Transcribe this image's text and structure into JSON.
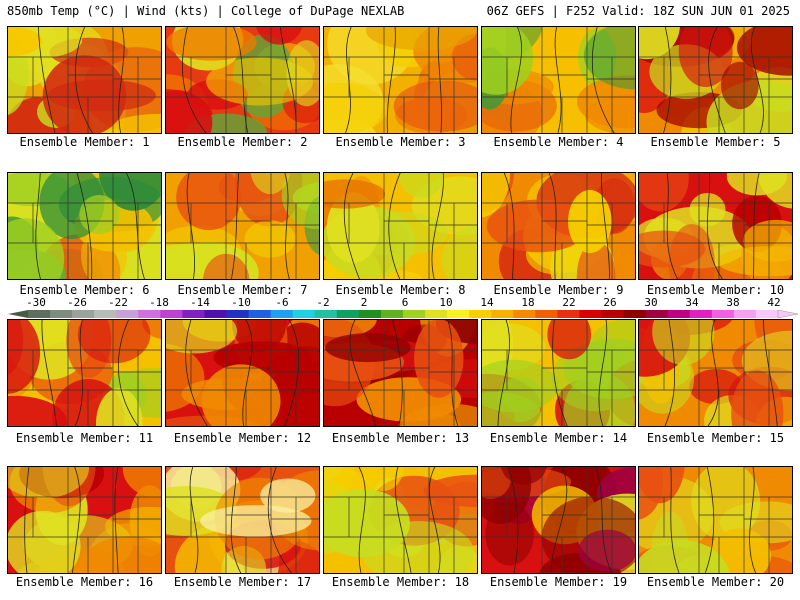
{
  "header": {
    "left": "850mb Temp (°C) | Wind (kts) | College of DuPage NEXLAB",
    "right": "06Z GEFS | F252 Valid: 18Z SUN JUN 01 2025"
  },
  "colorbar": {
    "ticks": [
      "-30",
      "-26",
      "-22",
      "-18",
      "-14",
      "-10",
      "-6",
      "-2",
      "2",
      "6",
      "10",
      "14",
      "18",
      "22",
      "26",
      "30",
      "34",
      "38",
      "42"
    ],
    "colors": [
      "#5e6e5e",
      "#7d8c7d",
      "#9aa39a",
      "#b7bcb7",
      "#c8a0d8",
      "#d070e0",
      "#c040d0",
      "#8020c0",
      "#5010b0",
      "#2030c0",
      "#2060e0",
      "#20a0f0",
      "#20d0e0",
      "#20c0a0",
      "#10a060",
      "#209020",
      "#60b020",
      "#a0d020",
      "#e0e020",
      "#f8f020",
      "#f8d000",
      "#f8b000",
      "#f88800",
      "#f06000",
      "#e83010",
      "#d80000",
      "#b80000",
      "#900000",
      "#a00040",
      "#c00080",
      "#e020c0",
      "#f060e0",
      "#f8a0f0",
      "#f8c8f8"
    ]
  },
  "members": [
    {
      "label": "Ensemble Member: 1",
      "palette": [
        "#f0a000",
        "#e85a10",
        "#d22a10",
        "#f6c800",
        "#e0e020",
        "#c8dc20"
      ]
    },
    {
      "label": "Ensemble Member: 2",
      "palette": [
        "#e83a10",
        "#d81010",
        "#f07a00",
        "#f6c800",
        "#e0e020",
        "#5aaa3a"
      ]
    },
    {
      "label": "Ensemble Member: 3",
      "palette": [
        "#f4b000",
        "#f08400",
        "#e85010",
        "#f6d000",
        "#f4e030",
        "#e8a000"
      ]
    },
    {
      "label": "Ensemble Member: 4",
      "palette": [
        "#f6c000",
        "#e0e020",
        "#f08a00",
        "#a0d020",
        "#3a9a3a",
        "#e85a10"
      ]
    },
    {
      "label": "Ensemble Member: 5",
      "palette": [
        "#f08a00",
        "#d81010",
        "#a00000",
        "#f4c800",
        "#e0e020",
        "#c8dc20"
      ]
    },
    {
      "label": "Ensemble Member: 6",
      "palette": [
        "#d8e020",
        "#a0d020",
        "#60b030",
        "#2a8a3a",
        "#f4c000",
        "#e86010"
      ]
    },
    {
      "label": "Ensemble Member: 7",
      "palette": [
        "#f0a000",
        "#e85010",
        "#a0d020",
        "#4a9a3a",
        "#f4d000",
        "#d8e020"
      ]
    },
    {
      "label": "Ensemble Member: 8",
      "palette": [
        "#f4c000",
        "#f0a000",
        "#e0e020",
        "#c8dc20",
        "#e87000",
        "#f6d000"
      ]
    },
    {
      "label": "Ensemble Member: 9",
      "palette": [
        "#f08a00",
        "#e85010",
        "#f4b800",
        "#f6d000",
        "#e0e020",
        "#d83010"
      ]
    },
    {
      "label": "Ensemble Member: 10",
      "palette": [
        "#d81010",
        "#b80000",
        "#e85010",
        "#f08a00",
        "#f4b800",
        "#e0e020"
      ]
    },
    {
      "label": "Ensemble Member: 11",
      "palette": [
        "#f4c000",
        "#e0e020",
        "#a0d020",
        "#e85010",
        "#d81010",
        "#f08a00"
      ]
    },
    {
      "label": "Ensemble Member: 12",
      "palette": [
        "#d81010",
        "#b80000",
        "#e85010",
        "#f4c000",
        "#e0e020",
        "#f08a00"
      ]
    },
    {
      "label": "Ensemble Member: 13",
      "palette": [
        "#b80000",
        "#900000",
        "#d81010",
        "#e85010",
        "#f08a00",
        "#f4c000"
      ]
    },
    {
      "label": "Ensemble Member: 14",
      "palette": [
        "#f4c000",
        "#e0e020",
        "#a0d020",
        "#4a9a3a",
        "#e85010",
        "#d81010"
      ]
    },
    {
      "label": "Ensemble Member: 15",
      "palette": [
        "#f08a00",
        "#e85010",
        "#f4c000",
        "#e0e020",
        "#c8dc20",
        "#d81010"
      ]
    },
    {
      "label": "Ensemble Member: 16",
      "palette": [
        "#d81010",
        "#b80000",
        "#e85010",
        "#f08a00",
        "#f4c000",
        "#e0e020"
      ]
    },
    {
      "label": "Ensemble Member: 17",
      "palette": [
        "#e85010",
        "#d81010",
        "#f08a00",
        "#f4c000",
        "#f8f0a0",
        "#e0e020"
      ]
    },
    {
      "label": "Ensemble Member: 18",
      "palette": [
        "#f4c000",
        "#f08a00",
        "#e0e020",
        "#c8dc20",
        "#e85010",
        "#f6d000"
      ]
    },
    {
      "label": "Ensemble Member: 19",
      "palette": [
        "#d81010",
        "#900000",
        "#a00040",
        "#e85010",
        "#f4c000",
        "#e0e020"
      ]
    },
    {
      "label": "Ensemble Member: 20",
      "palette": [
        "#f08a00",
        "#e85010",
        "#d81010",
        "#f4c000",
        "#e0e020",
        "#c8dc20"
      ]
    }
  ]
}
